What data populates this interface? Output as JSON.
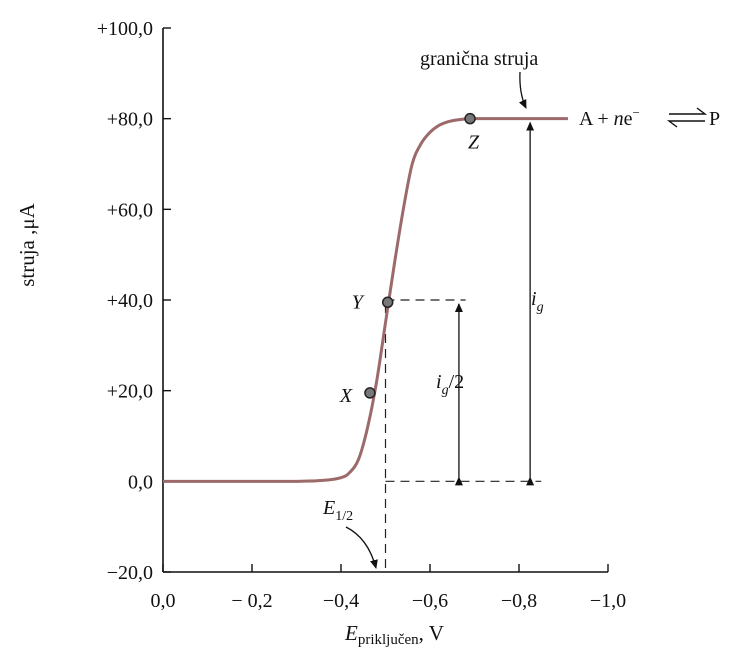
{
  "chart_data": {
    "type": "line",
    "xlabel": {
      "main": "E",
      "sub": "priključen",
      "rest": ", V"
    },
    "ylabel": "struja ,μA",
    "xlim": [
      0.0,
      -1.0
    ],
    "ylim": [
      -20.0,
      100.0
    ],
    "x_ticks": [
      0.0,
      -0.2,
      -0.4,
      -0.6,
      -0.8,
      -1.0
    ],
    "x_tick_labels": [
      "0,0",
      "− 0,2",
      "−0,4",
      "−0,6",
      "−0,8",
      "−1,0"
    ],
    "y_ticks": [
      -20,
      0,
      20,
      40,
      60,
      80,
      100
    ],
    "y_tick_labels": [
      "−20,0",
      "0,0",
      "+20,0",
      "+40,0",
      "+60,0",
      "+80,0",
      "+100,0"
    ],
    "series": [
      {
        "color": "#9c6a6a",
        "x": [
          0.0,
          -0.1,
          -0.2,
          -0.3,
          -0.36,
          -0.4,
          -0.42,
          -0.44,
          -0.46,
          -0.48,
          -0.5,
          -0.52,
          -0.54,
          -0.56,
          -0.58,
          -0.6,
          -0.62,
          -0.64,
          -0.66,
          -0.69,
          -0.75,
          -0.85,
          -0.91
        ],
        "y": [
          0.0,
          0.0,
          0.0,
          0.0,
          0.2,
          0.8,
          2.0,
          5.0,
          12.0,
          22.0,
          35.0,
          48.0,
          60.0,
          70.0,
          74.5,
          77.0,
          78.5,
          79.3,
          79.7,
          80.0,
          80.0,
          80.0,
          80.0
        ]
      }
    ],
    "points": [
      {
        "label": "X",
        "x": -0.465,
        "y": 19.5
      },
      {
        "label": "Y",
        "x": -0.505,
        "y": 39.5
      },
      {
        "label": "Z",
        "x": -0.69,
        "y": 80.0
      }
    ],
    "half_wave": {
      "x": -0.5,
      "y": 40.0
    },
    "limit_level": 80.0,
    "annotations": {
      "limiting_current": "granična struja",
      "reaction": {
        "lhs": "A + ",
        "n": "n",
        "e": "e",
        "sup": "−",
        "rhs": "P"
      },
      "ig": {
        "main": "i",
        "sub": "g"
      },
      "ig_half": {
        "main": "i",
        "sub": "g",
        "rest": "/2"
      },
      "e_half": {
        "main": "E",
        "sub": "1/2"
      }
    }
  }
}
